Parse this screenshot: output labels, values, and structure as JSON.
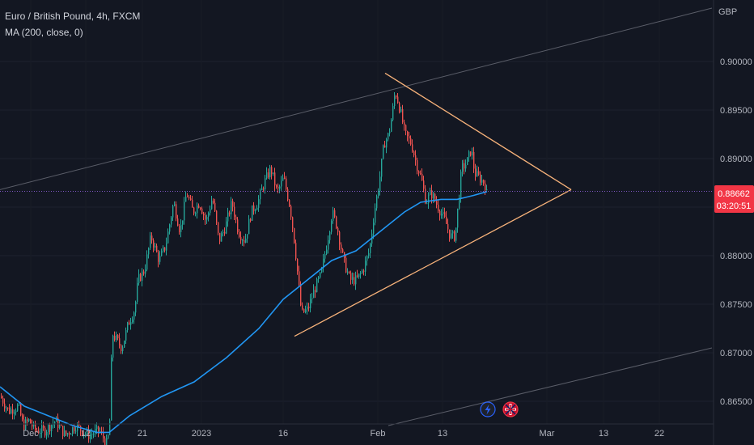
{
  "legend": {
    "symbol": "Euro / British Pound, 4h, FXCM",
    "indicator": "MA (200, close, 0)"
  },
  "currency": "GBP",
  "last_price": {
    "price": "0.88662",
    "countdown": "03:20:51",
    "value": 0.88662
  },
  "colors": {
    "background": "#131722",
    "up": "#26a69a",
    "down": "#ef5350",
    "ma": "#2196f3",
    "triangle": "#f7b27a",
    "channel": "#787b86",
    "price_line": "#7e57c2",
    "price_tag": "#f23645"
  },
  "chart_data": {
    "type": "candlestick",
    "y_ticks": [
      "0.90000",
      "0.89500",
      "0.89000",
      "0.88500",
      "0.88000",
      "0.87500",
      "0.87000",
      "0.86500"
    ],
    "y_tick_values": [
      0.9,
      0.895,
      0.89,
      0.885,
      0.88,
      0.875,
      0.87,
      0.865
    ],
    "x_ticks": [
      "Dec",
      "12",
      "21",
      "2023",
      "16",
      "Feb",
      "13",
      "Mar",
      "13",
      "22"
    ],
    "candle_path": [
      [
        0,
        0.8655
      ],
      [
        10,
        0.864
      ],
      [
        22,
        0.8645
      ],
      [
        28,
        0.8625
      ],
      [
        35,
        0.863
      ],
      [
        43,
        0.862
      ],
      [
        55,
        0.862
      ],
      [
        68,
        0.863
      ],
      [
        80,
        0.8615
      ],
      [
        93,
        0.8625
      ],
      [
        108,
        0.8615
      ],
      [
        122,
        0.862
      ],
      [
        132,
        0.8605
      ],
      [
        135,
        0.863
      ],
      [
        138,
        0.872
      ],
      [
        150,
        0.8705
      ],
      [
        158,
        0.873
      ],
      [
        166,
        0.8745
      ],
      [
        170,
        0.8775
      ],
      [
        178,
        0.8785
      ],
      [
        186,
        0.882
      ],
      [
        196,
        0.8795
      ],
      [
        204,
        0.881
      ],
      [
        214,
        0.8855
      ],
      [
        222,
        0.8825
      ],
      [
        230,
        0.8865
      ],
      [
        238,
        0.8845
      ],
      [
        246,
        0.8855
      ],
      [
        254,
        0.8835
      ],
      [
        262,
        0.886
      ],
      [
        270,
        0.8815
      ],
      [
        278,
        0.883
      ],
      [
        286,
        0.8855
      ],
      [
        294,
        0.8825
      ],
      [
        302,
        0.8815
      ],
      [
        310,
        0.8845
      ],
      [
        318,
        0.8855
      ],
      [
        326,
        0.8875
      ],
      [
        334,
        0.889
      ],
      [
        342,
        0.8865
      ],
      [
        350,
        0.888
      ],
      [
        358,
        0.885
      ],
      [
        364,
        0.881
      ],
      [
        368,
        0.8775
      ],
      [
        372,
        0.874
      ],
      [
        380,
        0.8745
      ],
      [
        388,
        0.8765
      ],
      [
        396,
        0.878
      ],
      [
        404,
        0.8815
      ],
      [
        410,
        0.8845
      ],
      [
        416,
        0.883
      ],
      [
        424,
        0.8795
      ],
      [
        432,
        0.8775
      ],
      [
        440,
        0.8775
      ],
      [
        448,
        0.8785
      ],
      [
        456,
        0.8805
      ],
      [
        462,
        0.8845
      ],
      [
        468,
        0.8875
      ],
      [
        474,
        0.8915
      ],
      [
        480,
        0.8925
      ],
      [
        484,
        0.8945
      ],
      [
        488,
        0.897
      ],
      [
        494,
        0.895
      ],
      [
        500,
        0.8925
      ],
      [
        508,
        0.8915
      ],
      [
        514,
        0.8895
      ],
      [
        520,
        0.888
      ],
      [
        526,
        0.8855
      ],
      [
        532,
        0.8865
      ],
      [
        538,
        0.8855
      ],
      [
        544,
        0.8845
      ],
      [
        550,
        0.8835
      ],
      [
        556,
        0.882
      ],
      [
        562,
        0.882
      ],
      [
        566,
        0.8855
      ],
      [
        570,
        0.889
      ],
      [
        576,
        0.8895
      ],
      [
        582,
        0.891
      ],
      [
        586,
        0.8885
      ],
      [
        592,
        0.888
      ],
      [
        598,
        0.8875
      ],
      [
        602,
        0.8866
      ]
    ],
    "ma": [
      [
        0,
        0.8665
      ],
      [
        30,
        0.8645
      ],
      [
        60,
        0.8635
      ],
      [
        90,
        0.8625
      ],
      [
        120,
        0.8618
      ],
      [
        135,
        0.8618
      ],
      [
        160,
        0.8635
      ],
      [
        200,
        0.8655
      ],
      [
        240,
        0.867
      ],
      [
        280,
        0.8695
      ],
      [
        320,
        0.8725
      ],
      [
        350,
        0.8755
      ],
      [
        380,
        0.8775
      ],
      [
        410,
        0.8795
      ],
      [
        440,
        0.8805
      ],
      [
        470,
        0.8825
      ],
      [
        500,
        0.8845
      ],
      [
        520,
        0.8855
      ],
      [
        545,
        0.8858
      ],
      [
        565,
        0.8858
      ],
      [
        585,
        0.8862
      ],
      [
        602,
        0.8866
      ]
    ],
    "triangle": {
      "upper": [
        [
          476,
          0.8988
        ],
        [
          706,
          0.8868
        ]
      ],
      "lower": [
        [
          364,
          0.8717
        ],
        [
          706,
          0.8868
        ]
      ]
    },
    "channel": {
      "upper": [
        [
          0,
          0.8868
        ],
        [
          880,
          0.9055
        ]
      ],
      "lower": [
        [
          480,
          0.8625
        ],
        [
          880,
          0.8705
        ]
      ]
    },
    "y_range": [
      0.8625,
      0.906
    ]
  }
}
